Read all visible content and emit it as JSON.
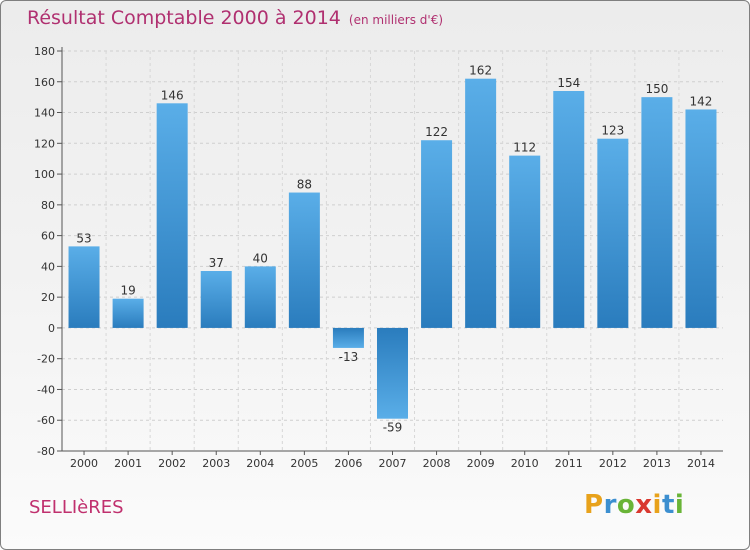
{
  "header": {
    "title": "Résultat Comptable 2000 à 2014",
    "subtitle": "(en milliers d'€)"
  },
  "footer": {
    "commune": "SELLIèRES",
    "logo_letters": [
      "P",
      "r",
      "o",
      "x",
      "i",
      "t",
      "i"
    ],
    "logo_colors": [
      "#e8a21b",
      "#3c8fd0",
      "#69b437",
      "#d9382f",
      "#e8a21b",
      "#3c8fd0",
      "#69b437"
    ]
  },
  "chart_data": {
    "type": "bar",
    "categories": [
      "2000",
      "2001",
      "2002",
      "2003",
      "2004",
      "2005",
      "2006",
      "2007",
      "2008",
      "2009",
      "2010",
      "2011",
      "2012",
      "2013",
      "2014"
    ],
    "values": [
      53,
      19,
      146,
      37,
      40,
      88,
      -13,
      -59,
      122,
      162,
      112,
      154,
      123,
      150,
      142
    ],
    "ylim": [
      -80,
      180
    ],
    "yticks": [
      -80,
      -60,
      -40,
      -20,
      0,
      20,
      40,
      60,
      80,
      100,
      120,
      140,
      160,
      180
    ],
    "grid": true,
    "bar_color_light": "#5aaee8",
    "bar_color_dark": "#2a7cbd"
  }
}
